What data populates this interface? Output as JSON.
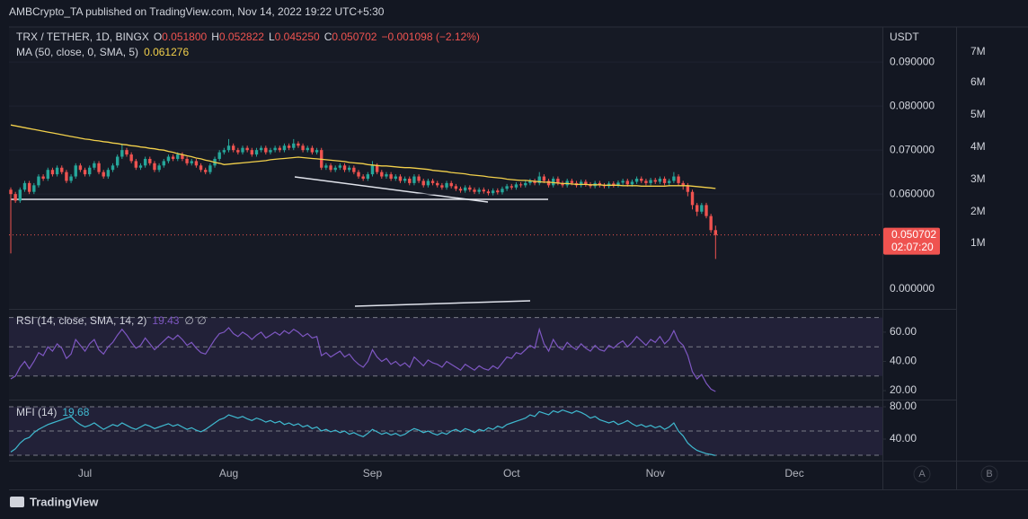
{
  "header": {
    "publisher": "AMBCrypto_TA published on TradingView.com, Nov 14, 2022 19:22 UTC+5:30",
    "brand": "TradingView",
    "scale_buttons": [
      "A",
      "B"
    ]
  },
  "chart_data": [
    {
      "type": "candlestick",
      "title": "TRX / TETHER, 1D, BINGX",
      "ohlc_labels": [
        "O",
        "H",
        "L",
        "C"
      ],
      "ohlc_values": [
        "0.051800",
        "0.052822",
        "0.045250",
        "0.050702"
      ],
      "change": "−0.001098 (−2.12%)",
      "up_color": "#26a69a",
      "down_color": "#ef5350",
      "open": [
        0.061,
        0.06,
        0.0585,
        0.061,
        0.0625,
        0.0605,
        0.062,
        0.064,
        0.0635,
        0.0655,
        0.0645,
        0.066,
        0.065,
        0.063,
        0.064,
        0.0665,
        0.0655,
        0.0645,
        0.066,
        0.067,
        0.065,
        0.064,
        0.0655,
        0.0665,
        0.0685,
        0.07,
        0.069,
        0.0675,
        0.066,
        0.0665,
        0.068,
        0.067,
        0.0655,
        0.0665,
        0.0675,
        0.0685,
        0.068,
        0.069,
        0.068,
        0.067,
        0.0675,
        0.0665,
        0.0655,
        0.065,
        0.0665,
        0.068,
        0.0695,
        0.07,
        0.071,
        0.07,
        0.0695,
        0.0705,
        0.07,
        0.069,
        0.07,
        0.0705,
        0.0695,
        0.07,
        0.0705,
        0.07,
        0.071,
        0.0705,
        0.0715,
        0.071,
        0.07,
        0.0705,
        0.0695,
        0.07,
        0.066,
        0.0665,
        0.0655,
        0.066,
        0.0665,
        0.0655,
        0.066,
        0.065,
        0.064,
        0.0635,
        0.0645,
        0.0665,
        0.065,
        0.064,
        0.0645,
        0.0635,
        0.064,
        0.063,
        0.0635,
        0.0625,
        0.064,
        0.063,
        0.062,
        0.063,
        0.0625,
        0.062,
        0.0615,
        0.0625,
        0.0618,
        0.0612,
        0.0608,
        0.0615,
        0.061,
        0.0605,
        0.061,
        0.0606,
        0.0602,
        0.0608,
        0.0604,
        0.0612,
        0.0618,
        0.0615,
        0.0622,
        0.062,
        0.0625,
        0.063,
        0.0625,
        0.064,
        0.063,
        0.062,
        0.0635,
        0.0625,
        0.062,
        0.063,
        0.0625,
        0.062,
        0.0628,
        0.0622,
        0.0618,
        0.0625,
        0.062,
        0.0618,
        0.0624,
        0.062,
        0.0626,
        0.063,
        0.0622,
        0.0628,
        0.0635,
        0.063,
        0.0625,
        0.0632,
        0.0628,
        0.0635,
        0.0625,
        0.063,
        0.064,
        0.0625,
        0.062,
        0.0605,
        0.0575,
        0.056,
        0.0575,
        0.055,
        0.0518
      ],
      "high": [
        0.0615,
        0.0605,
        0.0615,
        0.063,
        0.063,
        0.0625,
        0.0645,
        0.0645,
        0.066,
        0.066,
        0.0665,
        0.0665,
        0.0655,
        0.0645,
        0.067,
        0.067,
        0.066,
        0.0665,
        0.0675,
        0.0675,
        0.0655,
        0.066,
        0.067,
        0.069,
        0.0715,
        0.0705,
        0.0695,
        0.068,
        0.067,
        0.0685,
        0.0685,
        0.0675,
        0.067,
        0.068,
        0.069,
        0.069,
        0.0695,
        0.0695,
        0.0685,
        0.068,
        0.068,
        0.067,
        0.066,
        0.067,
        0.0685,
        0.07,
        0.0705,
        0.0725,
        0.0715,
        0.0705,
        0.071,
        0.071,
        0.0705,
        0.0705,
        0.071,
        0.071,
        0.0705,
        0.071,
        0.071,
        0.0715,
        0.0715,
        0.0725,
        0.072,
        0.0715,
        0.071,
        0.071,
        0.0705,
        0.0705,
        0.067,
        0.067,
        0.0665,
        0.067,
        0.067,
        0.0665,
        0.0665,
        0.0655,
        0.0645,
        0.065,
        0.0675,
        0.067,
        0.0655,
        0.065,
        0.065,
        0.0645,
        0.0645,
        0.064,
        0.064,
        0.0645,
        0.0645,
        0.0635,
        0.0635,
        0.0635,
        0.063,
        0.0625,
        0.063,
        0.063,
        0.0623,
        0.0617,
        0.062,
        0.062,
        0.0615,
        0.0615,
        0.0615,
        0.0611,
        0.0613,
        0.0613,
        0.0617,
        0.0623,
        0.0623,
        0.0627,
        0.0627,
        0.063,
        0.0635,
        0.0635,
        0.065,
        0.0645,
        0.0635,
        0.064,
        0.064,
        0.063,
        0.0635,
        0.0635,
        0.063,
        0.0633,
        0.0633,
        0.0627,
        0.063,
        0.063,
        0.0625,
        0.0629,
        0.0629,
        0.0631,
        0.0635,
        0.0635,
        0.0633,
        0.064,
        0.064,
        0.0635,
        0.0637,
        0.0637,
        0.064,
        0.064,
        0.0635,
        0.065,
        0.0645,
        0.063,
        0.0625,
        0.061,
        0.058,
        0.058,
        0.058,
        0.0555,
        0.052822
      ],
      "low": [
        0.0465,
        0.058,
        0.058,
        0.0605,
        0.06,
        0.06,
        0.0615,
        0.063,
        0.063,
        0.064,
        0.064,
        0.0645,
        0.0625,
        0.0625,
        0.0635,
        0.065,
        0.064,
        0.064,
        0.0655,
        0.0645,
        0.0635,
        0.0635,
        0.065,
        0.066,
        0.068,
        0.0685,
        0.067,
        0.0655,
        0.0655,
        0.066,
        0.0665,
        0.065,
        0.065,
        0.066,
        0.067,
        0.0675,
        0.0675,
        0.0675,
        0.0665,
        0.0665,
        0.066,
        0.065,
        0.0645,
        0.0645,
        0.066,
        0.0675,
        0.069,
        0.0695,
        0.0695,
        0.069,
        0.069,
        0.0695,
        0.0685,
        0.0685,
        0.0695,
        0.069,
        0.069,
        0.0695,
        0.0695,
        0.0695,
        0.07,
        0.07,
        0.0705,
        0.0695,
        0.0695,
        0.069,
        0.069,
        0.0655,
        0.0655,
        0.065,
        0.065,
        0.0655,
        0.065,
        0.065,
        0.0645,
        0.0635,
        0.063,
        0.063,
        0.064,
        0.0645,
        0.0635,
        0.0635,
        0.063,
        0.063,
        0.0625,
        0.0625,
        0.062,
        0.062,
        0.0625,
        0.0615,
        0.0615,
        0.062,
        0.0615,
        0.061,
        0.061,
        0.0613,
        0.0607,
        0.0603,
        0.0603,
        0.0605,
        0.06,
        0.06,
        0.0601,
        0.0597,
        0.0597,
        0.0599,
        0.0599,
        0.0607,
        0.061,
        0.061,
        0.0615,
        0.0615,
        0.062,
        0.062,
        0.062,
        0.0625,
        0.0615,
        0.0615,
        0.062,
        0.0615,
        0.0615,
        0.062,
        0.0615,
        0.0615,
        0.0617,
        0.0613,
        0.0613,
        0.0615,
        0.0613,
        0.0613,
        0.0615,
        0.0615,
        0.0621,
        0.0617,
        0.0617,
        0.0623,
        0.0625,
        0.062,
        0.062,
        0.0623,
        0.0623,
        0.062,
        0.062,
        0.0625,
        0.062,
        0.061,
        0.0595,
        0.0565,
        0.055,
        0.0555,
        0.0545,
        0.0512,
        0.04525
      ],
      "close": [
        0.06,
        0.0585,
        0.061,
        0.0625,
        0.0605,
        0.062,
        0.064,
        0.0635,
        0.0655,
        0.0645,
        0.066,
        0.065,
        0.063,
        0.064,
        0.0665,
        0.0655,
        0.0645,
        0.066,
        0.067,
        0.065,
        0.064,
        0.0655,
        0.0665,
        0.0685,
        0.07,
        0.069,
        0.0675,
        0.066,
        0.0665,
        0.068,
        0.067,
        0.0655,
        0.0665,
        0.0675,
        0.0685,
        0.068,
        0.069,
        0.068,
        0.067,
        0.0675,
        0.0665,
        0.0655,
        0.065,
        0.0665,
        0.068,
        0.0695,
        0.07,
        0.071,
        0.07,
        0.0695,
        0.0705,
        0.07,
        0.069,
        0.07,
        0.0705,
        0.0695,
        0.07,
        0.0705,
        0.07,
        0.071,
        0.0705,
        0.0715,
        0.071,
        0.07,
        0.0705,
        0.0695,
        0.07,
        0.066,
        0.0665,
        0.0655,
        0.066,
        0.0665,
        0.0655,
        0.066,
        0.065,
        0.064,
        0.0635,
        0.0645,
        0.0665,
        0.065,
        0.064,
        0.0645,
        0.0635,
        0.064,
        0.063,
        0.0635,
        0.0625,
        0.064,
        0.063,
        0.062,
        0.063,
        0.0625,
        0.062,
        0.0615,
        0.0625,
        0.0618,
        0.0612,
        0.0608,
        0.0615,
        0.061,
        0.0605,
        0.061,
        0.0606,
        0.0602,
        0.0608,
        0.0604,
        0.0612,
        0.0618,
        0.0615,
        0.0622,
        0.062,
        0.0625,
        0.063,
        0.0625,
        0.064,
        0.063,
        0.062,
        0.0635,
        0.0625,
        0.062,
        0.063,
        0.0625,
        0.062,
        0.0628,
        0.0622,
        0.0618,
        0.0625,
        0.062,
        0.0618,
        0.0624,
        0.062,
        0.0626,
        0.063,
        0.0622,
        0.0628,
        0.0635,
        0.063,
        0.0625,
        0.0632,
        0.0628,
        0.0635,
        0.0625,
        0.063,
        0.064,
        0.0625,
        0.062,
        0.0605,
        0.0575,
        0.056,
        0.0575,
        0.055,
        0.0518,
        0.050702
      ],
      "overlays": [
        {
          "name": "MA (50, close, 0, SMA, 5)",
          "color": "#f2d04b",
          "values": [
            0.0757,
            0.0755,
            0.0753,
            0.0751,
            0.0749,
            0.0747,
            0.0745,
            0.0743,
            0.0741,
            0.0739,
            0.0737,
            0.0735,
            0.0733,
            0.0731,
            0.0729,
            0.0727,
            0.0725,
            0.0724,
            0.0722,
            0.0721,
            0.0719,
            0.0718,
            0.0716,
            0.0715,
            0.0713,
            0.0712,
            0.071,
            0.0709,
            0.0707,
            0.0706,
            0.0704,
            0.0703,
            0.0701,
            0.07,
            0.0697,
            0.0695,
            0.0692,
            0.069,
            0.0687,
            0.0685,
            0.0682,
            0.068,
            0.0677,
            0.0675,
            0.0672,
            0.067,
            0.0667,
            0.0668,
            0.0669,
            0.067,
            0.0671,
            0.0672,
            0.0673,
            0.0674,
            0.0675,
            0.0676,
            0.0678,
            0.0679,
            0.068,
            0.0681,
            0.0682,
            0.0683,
            0.0684,
            0.0683,
            0.0682,
            0.0681,
            0.068,
            0.0679,
            0.0678,
            0.0677,
            0.0676,
            0.0675,
            0.0674,
            0.0672,
            0.0671,
            0.067,
            0.0669,
            0.0667,
            0.0666,
            0.0665,
            0.0664,
            0.0664,
            0.0663,
            0.0662,
            0.0661,
            0.066,
            0.066,
            0.0659,
            0.0658,
            0.0657,
            0.0656,
            0.0654,
            0.0653,
            0.0652,
            0.0651,
            0.0649,
            0.0648,
            0.0647,
            0.0646,
            0.0644,
            0.0643,
            0.0642,
            0.0641,
            0.0639,
            0.0638,
            0.0637,
            0.0636,
            0.0634,
            0.0633,
            0.0632,
            0.0631,
            0.0631,
            0.063,
            0.0629,
            0.0628,
            0.0627,
            0.0627,
            0.0626,
            0.0625,
            0.0624,
            0.0624,
            0.0623,
            0.0622,
            0.0622,
            0.0622,
            0.0621,
            0.0621,
            0.0621,
            0.062,
            0.062,
            0.062,
            0.062,
            0.0619,
            0.0619,
            0.0619,
            0.0619,
            0.0618,
            0.0618,
            0.0618,
            0.0618,
            0.0618,
            0.0618,
            0.0619,
            0.0619,
            0.0619,
            0.0619,
            0.0619,
            0.0618,
            0.0617,
            0.0616,
            0.0615,
            0.0614,
            0.061276
          ]
        }
      ],
      "ylim": [
        0.0341,
        0.098
      ],
      "yticks": [
        {
          "value": 0.06,
          "label": "0.060000"
        },
        {
          "value": 0.07,
          "label": "0.070000"
        },
        {
          "value": 0.08,
          "label": "0.080000"
        },
        {
          "value": 0.09,
          "label": "0.090000"
        }
      ],
      "y_unit": "USDT",
      "zero_label": "0.000000",
      "volume_ticks": [
        "7M",
        "6M",
        "5M",
        "4M",
        "3M",
        "2M",
        "1M"
      ],
      "countdown": "02:07:20",
      "months": [
        "Jul",
        "Aug",
        "Sep",
        "Oct",
        "Nov",
        "Dec"
      ]
    },
    {
      "type": "line",
      "title": "RSI (14, close, SMA, 14, 2)",
      "note": "∅ ∅",
      "color": "#7e57c2",
      "values": [
        28,
        30,
        36,
        40,
        35,
        40,
        46,
        44,
        50,
        47,
        52,
        49,
        42,
        45,
        55,
        51,
        47,
        52,
        55,
        48,
        45,
        50,
        53,
        58,
        62,
        58,
        53,
        49,
        51,
        56,
        52,
        48,
        51,
        54,
        57,
        55,
        58,
        55,
        51,
        53,
        49,
        46,
        45,
        50,
        55,
        59,
        60,
        63,
        59,
        57,
        60,
        58,
        55,
        58,
        60,
        56,
        58,
        60,
        58,
        61,
        59,
        62,
        60,
        57,
        59,
        56,
        57,
        44,
        46,
        43,
        45,
        47,
        43,
        45,
        41,
        38,
        36,
        40,
        48,
        43,
        40,
        42,
        38,
        40,
        37,
        39,
        36,
        43,
        40,
        37,
        41,
        39,
        38,
        36,
        40,
        38,
        36,
        34,
        38,
        36,
        34,
        37,
        35,
        34,
        37,
        35,
        39,
        43,
        42,
        46,
        45,
        48,
        51,
        49,
        62,
        52,
        47,
        55,
        50,
        48,
        53,
        50,
        48,
        52,
        49,
        47,
        51,
        48,
        47,
        51,
        49,
        52,
        54,
        50,
        53,
        57,
        54,
        51,
        55,
        53,
        57,
        52,
        55,
        61,
        54,
        51,
        44,
        33,
        28,
        31,
        25,
        21,
        19.43
      ],
      "bands": [
        70,
        50,
        30
      ],
      "ylim": [
        14.5,
        75.3
      ],
      "yticks": [
        {
          "value": 60,
          "label": "60.00"
        },
        {
          "value": 40,
          "label": "40.00"
        },
        {
          "value": 20,
          "label": "20.00"
        }
      ]
    },
    {
      "type": "line",
      "title": "MFI (14)",
      "color": "#3fb9cf",
      "values": [
        24,
        28,
        35,
        40,
        42,
        48,
        52,
        55,
        58,
        60,
        62,
        64,
        66,
        68,
        62,
        58,
        55,
        57,
        60,
        56,
        52,
        55,
        58,
        56,
        60,
        57,
        54,
        52,
        55,
        58,
        56,
        53,
        55,
        57,
        59,
        56,
        58,
        55,
        52,
        54,
        51,
        49,
        52,
        56,
        60,
        64,
        66,
        70,
        68,
        66,
        68,
        65,
        63,
        66,
        64,
        61,
        63,
        60,
        62,
        58,
        60,
        57,
        59,
        55,
        57,
        53,
        55,
        50,
        52,
        49,
        51,
        48,
        50,
        46,
        48,
        45,
        43,
        47,
        52,
        49,
        46,
        48,
        45,
        47,
        44,
        46,
        50,
        53,
        51,
        48,
        50,
        47,
        45,
        48,
        46,
        50,
        52,
        49,
        53,
        51,
        48,
        52,
        50,
        54,
        52,
        56,
        54,
        58,
        60,
        62,
        64,
        66,
        70,
        68,
        74,
        72,
        70,
        75,
        73,
        76,
        74,
        72,
        75,
        73,
        70,
        66,
        68,
        64,
        62,
        60,
        62,
        58,
        60,
        63,
        59,
        56,
        58,
        55,
        57,
        54,
        56,
        52,
        55,
        60,
        50,
        44,
        35,
        30,
        26,
        24,
        22,
        21,
        19.68
      ],
      "bands": [
        80,
        50,
        20
      ],
      "ylim": [
        14.4,
        86.7
      ],
      "yticks": [
        {
          "value": 80,
          "label": "80.00"
        },
        {
          "value": 40,
          "label": "40.00"
        }
      ]
    }
  ]
}
